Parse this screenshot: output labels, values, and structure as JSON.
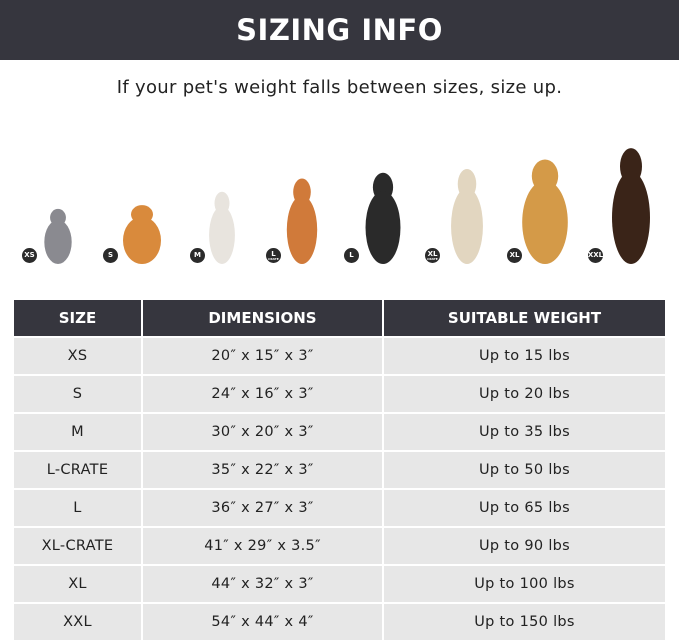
{
  "banner": {
    "title": "SIZING INFO"
  },
  "subtitle": "If your pet's weight falls between sizes, size up.",
  "pets": [
    {
      "badge": "XS",
      "badge_sub": "",
      "animal": "cat"
    },
    {
      "badge": "S",
      "badge_sub": "",
      "animal": "pomeranian"
    },
    {
      "badge": "M",
      "badge_sub": "",
      "animal": "french-bulldog"
    },
    {
      "badge": "L",
      "badge_sub": "CRATE",
      "animal": "shiba-inu"
    },
    {
      "badge": "L",
      "badge_sub": "",
      "animal": "border-collie"
    },
    {
      "badge": "XL",
      "badge_sub": "CRATE",
      "animal": "labrador"
    },
    {
      "badge": "XL",
      "badge_sub": "",
      "animal": "golden-retriever"
    },
    {
      "badge": "XXL",
      "badge_sub": "",
      "animal": "doberman"
    }
  ],
  "table": {
    "headers": [
      "SIZE",
      "DIMENSIONS",
      "SUITABLE WEIGHT"
    ],
    "rows": [
      [
        "XS",
        "20″ x 15″ x 3″",
        "Up to 15 lbs"
      ],
      [
        "S",
        "24″ x 16″ x 3″",
        "Up to 20 lbs"
      ],
      [
        "M",
        "30″ x 20″ x 3″",
        "Up to 35 lbs"
      ],
      [
        "L-CRATE",
        "35″ x 22″ x 3″",
        "Up to 50 lbs"
      ],
      [
        "L",
        "36″ x 27″ x 3″",
        "Up to 65 lbs"
      ],
      [
        "XL-CRATE",
        "41″ x 29″ x 3.5″",
        "Up to 90 lbs"
      ],
      [
        "XL",
        "44″ x 32″ x 3″",
        "Up to 100 lbs"
      ],
      [
        "XXL",
        "54″ x 44″ x 4″",
        "Up to 150 lbs"
      ]
    ]
  },
  "colors": {
    "header_bg": "#36363e",
    "row_bg": "#e7e7e7"
  }
}
